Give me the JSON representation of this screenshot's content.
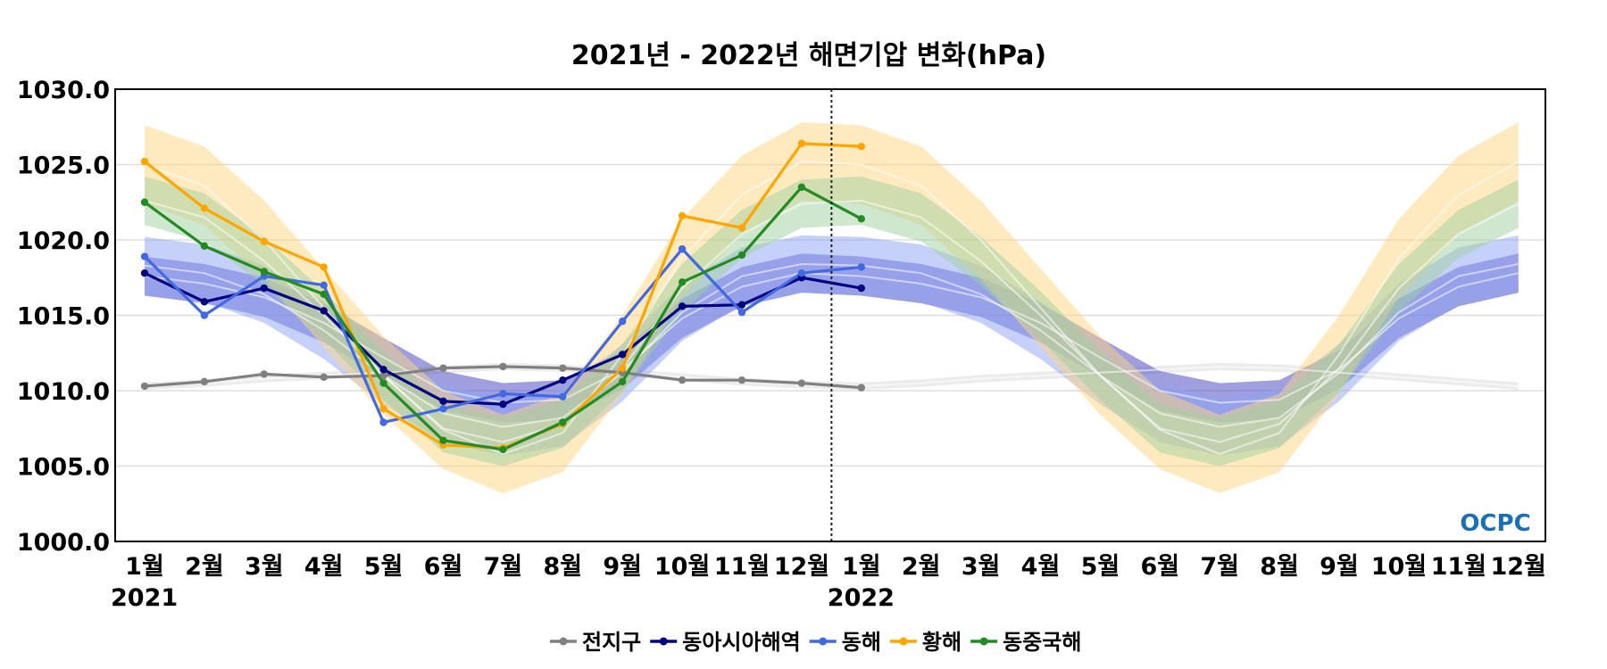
{
  "chart_data": {
    "type": "line",
    "title": "2021년 - 2022년 해면기압 변화(hPa)",
    "xlabel": "",
    "ylabel": "",
    "ylim": [
      1000,
      1030
    ],
    "yticks": [
      "1000.0",
      "1005.0",
      "1010.0",
      "1015.0",
      "1020.0",
      "1025.0",
      "1030.0"
    ],
    "x_labels": [
      "1월",
      "2월",
      "3월",
      "4월",
      "5월",
      "6월",
      "7월",
      "8월",
      "9월",
      "10월",
      "11월",
      "12월",
      "1월",
      "2월",
      "3월",
      "4월",
      "5월",
      "6월",
      "7월",
      "8월",
      "9월",
      "10월",
      "11월",
      "12월"
    ],
    "year_labels": [
      {
        "index": 0,
        "text": "2021"
      },
      {
        "index": 12,
        "text": "2022"
      }
    ],
    "divider_after_index": 11.5,
    "grid": "horizontal",
    "legend_position": "bottom",
    "series": [
      {
        "name": "전지구",
        "color": "#808080",
        "values": [
          1010.3,
          1010.6,
          1011.1,
          1010.9,
          1011.0,
          1011.5,
          1011.6,
          1011.5,
          1011.2,
          1010.7,
          1010.7,
          1010.5,
          1010.2
        ],
        "clim_mean": [
          1010.3,
          1010.5,
          1010.8,
          1011.0,
          1011.2,
          1011.4,
          1011.6,
          1011.5,
          1011.2,
          1010.9,
          1010.6,
          1010.4,
          1010.3,
          1010.5,
          1010.8,
          1011.0,
          1011.2,
          1011.4,
          1011.6,
          1011.5,
          1011.2,
          1010.9,
          1010.6,
          1010.3
        ],
        "clim_half_width": 0.25,
        "band_color": "#d9d9d9"
      },
      {
        "name": "동아시아해역",
        "color": "#000080",
        "values": [
          1017.8,
          1015.9,
          1016.8,
          1015.3,
          1011.4,
          1009.3,
          1009.1,
          1010.7,
          1012.4,
          1015.6,
          1015.7,
          1017.5,
          1016.8
        ],
        "clim_mean": [
          1017.6,
          1017.1,
          1016.2,
          1014.5,
          1012.2,
          1010.0,
          1009.2,
          1009.4,
          1011.4,
          1014.8,
          1016.9,
          1017.8,
          1017.6,
          1017.1,
          1016.2,
          1014.5,
          1012.2,
          1010.0,
          1009.2,
          1009.4,
          1011.4,
          1014.8,
          1016.9,
          1017.8
        ],
        "clim_half_width": 1.3,
        "band_color": "#4040c0"
      },
      {
        "name": "동해",
        "color": "#4169e1",
        "values": [
          1018.9,
          1015.0,
          1017.6,
          1017.0,
          1007.9,
          1008.8,
          1009.8,
          1009.6,
          1014.6,
          1019.4,
          1015.2,
          1017.8,
          1018.2
        ],
        "clim_mean": [
          1018.3,
          1017.8,
          1016.4,
          1014.0,
          1011.0,
          1008.5,
          1007.6,
          1008.2,
          1011.2,
          1015.2,
          1017.6,
          1018.4,
          1018.3,
          1017.8,
          1016.4,
          1014.0,
          1011.0,
          1008.5,
          1007.6,
          1008.2,
          1011.2,
          1015.2,
          1017.6,
          1018.4
        ],
        "clim_half_width": 1.9,
        "band_color": "#8da4f5"
      },
      {
        "name": "황해",
        "color": "#ffa500",
        "values": [
          1025.2,
          1022.1,
          1019.9,
          1018.2,
          1008.8,
          1006.4,
          1006.2,
          1007.8,
          1011.5,
          1021.6,
          1020.8,
          1026.4,
          1026.2
        ],
        "clim_mean": [
          1025.0,
          1023.6,
          1020.0,
          1015.5,
          1011.0,
          1007.4,
          1005.8,
          1007.2,
          1012.4,
          1018.8,
          1023.0,
          1025.2,
          1025.0,
          1023.6,
          1020.0,
          1015.5,
          1011.0,
          1007.4,
          1005.8,
          1007.2,
          1012.4,
          1018.8,
          1023.0,
          1025.2
        ],
        "clim_half_width": 2.6,
        "band_color": "#ffd680"
      },
      {
        "name": "동중국해",
        "color": "#228b22",
        "values": [
          1022.5,
          1019.6,
          1017.9,
          1016.4,
          1010.5,
          1006.7,
          1006.1,
          1007.9,
          1010.6,
          1017.2,
          1019.0,
          1023.5,
          1021.4
        ],
        "clim_mean": [
          1022.6,
          1021.5,
          1018.6,
          1015.0,
          1011.0,
          1007.5,
          1006.6,
          1007.8,
          1011.5,
          1016.8,
          1020.4,
          1022.4,
          1022.6,
          1021.5,
          1018.6,
          1015.0,
          1011.0,
          1007.5,
          1006.6,
          1007.8,
          1011.5,
          1016.8,
          1020.4,
          1022.4
        ],
        "clim_half_width": 1.6,
        "band_color": "#9fd09f"
      }
    ]
  },
  "logo": {
    "text": "OCPC",
    "color": "#1a6fb5"
  }
}
